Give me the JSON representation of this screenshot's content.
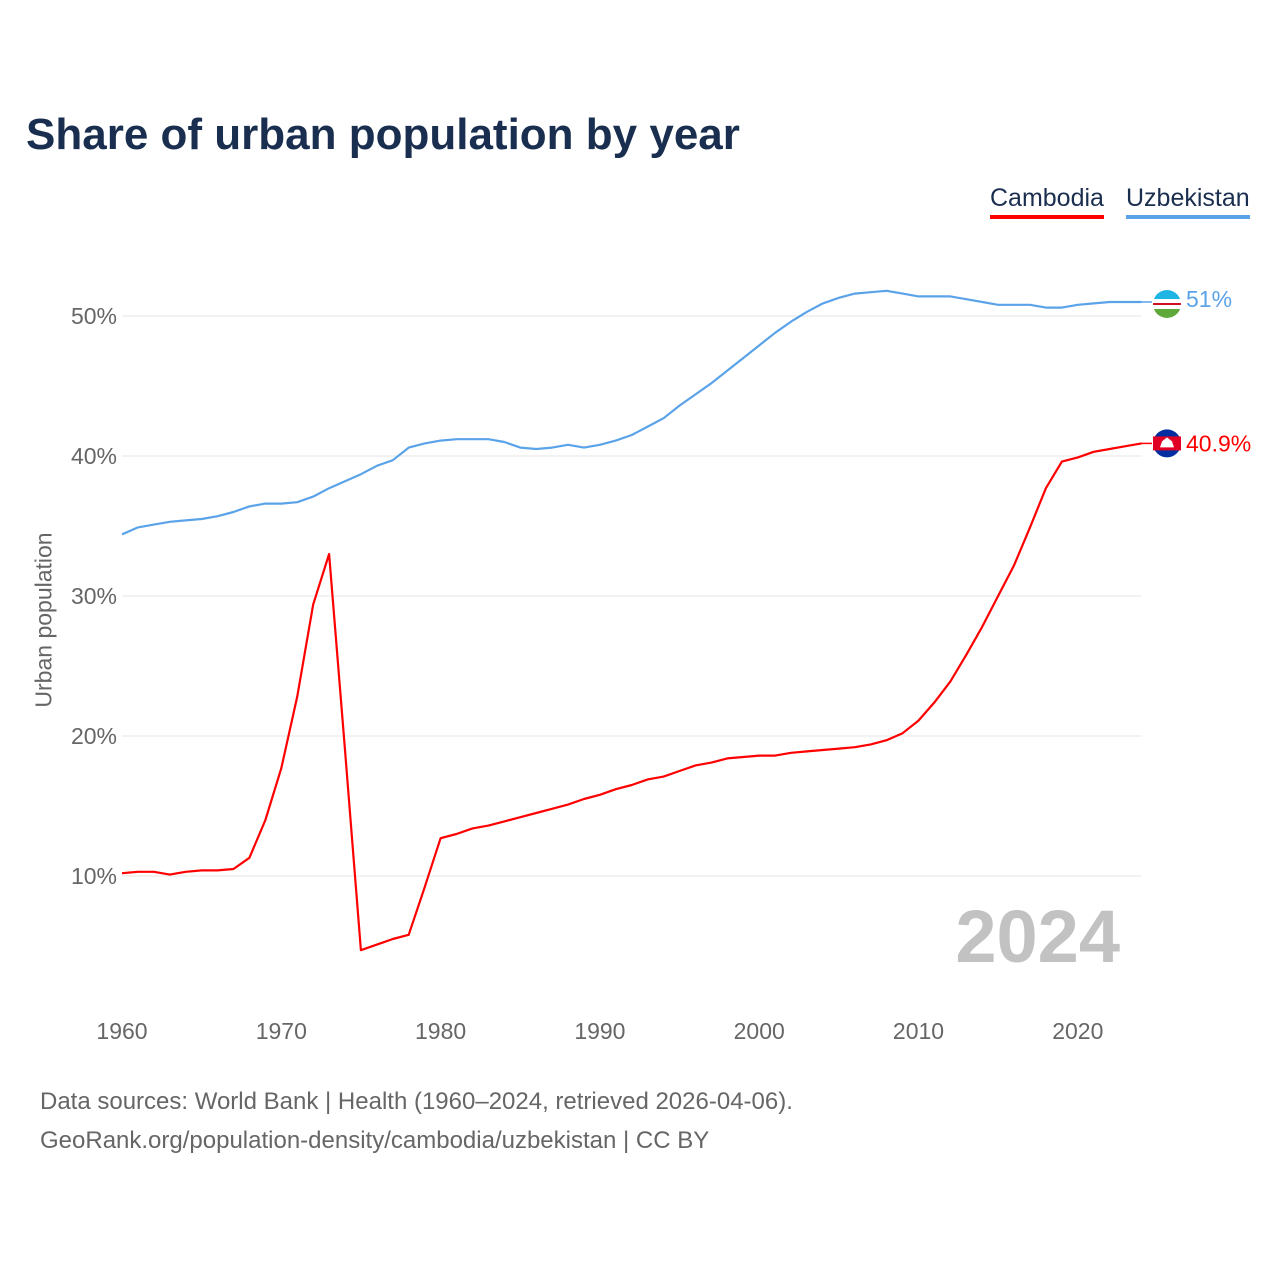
{
  "title": "Share of urban population by year",
  "chart_data": {
    "type": "line",
    "title": "Share of urban population by year",
    "xlabel": "",
    "ylabel": "Urban population",
    "xlim": [
      1960,
      2024
    ],
    "ylim": [
      0,
      55
    ],
    "x_ticks": [
      "1960",
      "1970",
      "1980",
      "1990",
      "2000",
      "2010",
      "2020"
    ],
    "y_ticks": [
      "10%",
      "20%",
      "30%",
      "40%",
      "50%"
    ],
    "grid": true,
    "legend_placement": "top-right",
    "year_watermark": "2024",
    "x": [
      1960,
      1961,
      1962,
      1963,
      1964,
      1965,
      1966,
      1967,
      1968,
      1969,
      1970,
      1971,
      1972,
      1973,
      1974,
      1975,
      1976,
      1977,
      1978,
      1979,
      1980,
      1981,
      1982,
      1983,
      1984,
      1985,
      1986,
      1987,
      1988,
      1989,
      1990,
      1991,
      1992,
      1993,
      1994,
      1995,
      1996,
      1997,
      1998,
      1999,
      2000,
      2001,
      2002,
      2003,
      2004,
      2005,
      2006,
      2007,
      2008,
      2009,
      2010,
      2011,
      2012,
      2013,
      2014,
      2015,
      2016,
      2017,
      2018,
      2019,
      2020,
      2021,
      2022,
      2023,
      2024
    ],
    "series": [
      {
        "name": "Cambodia",
        "color": "#ff0000",
        "end_label": "40.9%",
        "values": [
          10.2,
          10.3,
          10.3,
          10.1,
          10.3,
          10.4,
          10.4,
          10.5,
          11.3,
          14.0,
          17.7,
          22.8,
          29.4,
          33.0,
          19.0,
          4.7,
          5.1,
          5.5,
          5.8,
          9.2,
          12.7,
          13.0,
          13.4,
          13.6,
          13.9,
          14.2,
          14.5,
          14.8,
          15.1,
          15.5,
          15.8,
          16.2,
          16.5,
          16.9,
          17.1,
          17.5,
          17.9,
          18.1,
          18.4,
          18.5,
          18.6,
          18.6,
          18.8,
          18.9,
          19.0,
          19.1,
          19.2,
          19.4,
          19.7,
          20.2,
          21.1,
          22.4,
          23.9,
          25.8,
          27.8,
          30.0,
          32.2,
          34.9,
          37.7,
          39.6,
          39.9,
          40.3,
          40.5,
          40.7,
          40.9
        ]
      },
      {
        "name": "Uzbekistan",
        "color": "#5ba3e8",
        "end_label": "51%",
        "values": [
          34.4,
          34.9,
          35.1,
          35.3,
          35.4,
          35.5,
          35.7,
          36.0,
          36.4,
          36.6,
          36.6,
          36.7,
          37.1,
          37.7,
          38.2,
          38.7,
          39.3,
          39.7,
          40.6,
          40.9,
          41.1,
          41.2,
          41.2,
          41.2,
          41.0,
          40.6,
          40.5,
          40.6,
          40.8,
          40.6,
          40.8,
          41.1,
          41.5,
          42.1,
          42.7,
          43.6,
          44.4,
          45.2,
          46.1,
          47.0,
          47.9,
          48.8,
          49.6,
          50.3,
          50.9,
          51.3,
          51.6,
          51.7,
          51.8,
          51.6,
          51.4,
          51.4,
          51.4,
          51.2,
          51.0,
          50.8,
          50.8,
          50.8,
          50.6,
          50.6,
          50.8,
          50.9,
          51.0,
          51.0,
          51.0
        ]
      }
    ]
  },
  "sources": {
    "line1": "Data sources: World Bank | Health (1960–2024, retrieved 2026-04-06).",
    "line2": "GeoRank.org/population-density/cambodia/uzbekistan | CC BY"
  }
}
